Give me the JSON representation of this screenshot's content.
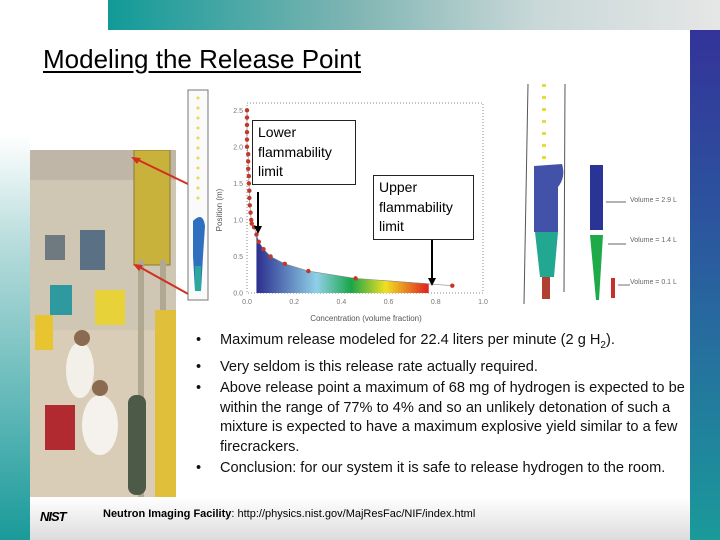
{
  "slide": {
    "title": "Modeling the Release Point",
    "callouts": {
      "lower": "Lower flammability limit",
      "upper": "Upper flammability limit"
    },
    "volume_labels": [
      "Volume = 2.9 L",
      "Volume = 1.4 L",
      "Volume = 0.1 L"
    ],
    "bullets": [
      {
        "text": "Maximum release modeled for 22.4 liters per minute (2 g H",
        "sub": "2",
        "tail": ")."
      },
      {
        "text": "Very seldom is this release rate actually required."
      },
      {
        "text": "Above release point a maximum of 68 mg of hydrogen is expected to be within the range of 77% to 4% and so an unlikely detonation of such a mixture is expected to have a maximum explosive yield similar to a few firecrackers."
      },
      {
        "text": "Conclusion: for our system it is safe to release hydrogen to the room."
      }
    ],
    "bullet_glyph": "•",
    "footer": {
      "logo": "NIST",
      "facility": "Neutron Imaging Facility",
      "separator": ": ",
      "url": "http://physics.nist.gov/MajResFac/NIF/index.html"
    },
    "colors": {
      "accent_teal": "#1a9a9a",
      "accent_blue": "#333399",
      "marker": "#c0392b"
    }
  },
  "chart_data": {
    "type": "scatter",
    "xlabel": "Concentration (volume fraction)",
    "ylabel": "Position (m)",
    "xlim": [
      0,
      1.0
    ],
    "ylim": [
      0,
      2.6
    ],
    "xticks": [
      "0.0",
      "0.2",
      "0.4",
      "0.6",
      "0.8",
      "1.0"
    ],
    "yticks": [
      "0.0",
      "0.5",
      "1.0",
      "1.5",
      "2.0",
      "2.5"
    ],
    "x": [
      0.0,
      0.0,
      0.0,
      0.0,
      0.0,
      0.0,
      0.005,
      0.005,
      0.005,
      0.008,
      0.008,
      0.01,
      0.01,
      0.012,
      0.015,
      0.018,
      0.02,
      0.03,
      0.04,
      0.05,
      0.07,
      0.1,
      0.16,
      0.26,
      0.46,
      0.87
    ],
    "y": [
      2.5,
      2.4,
      2.3,
      2.2,
      2.1,
      2.0,
      1.9,
      1.8,
      1.7,
      1.6,
      1.5,
      1.4,
      1.3,
      1.2,
      1.1,
      1.0,
      0.95,
      0.9,
      0.8,
      0.7,
      0.6,
      0.5,
      0.4,
      0.3,
      0.2,
      0.1
    ],
    "flammable_range": [
      0.04,
      0.77
    ]
  }
}
